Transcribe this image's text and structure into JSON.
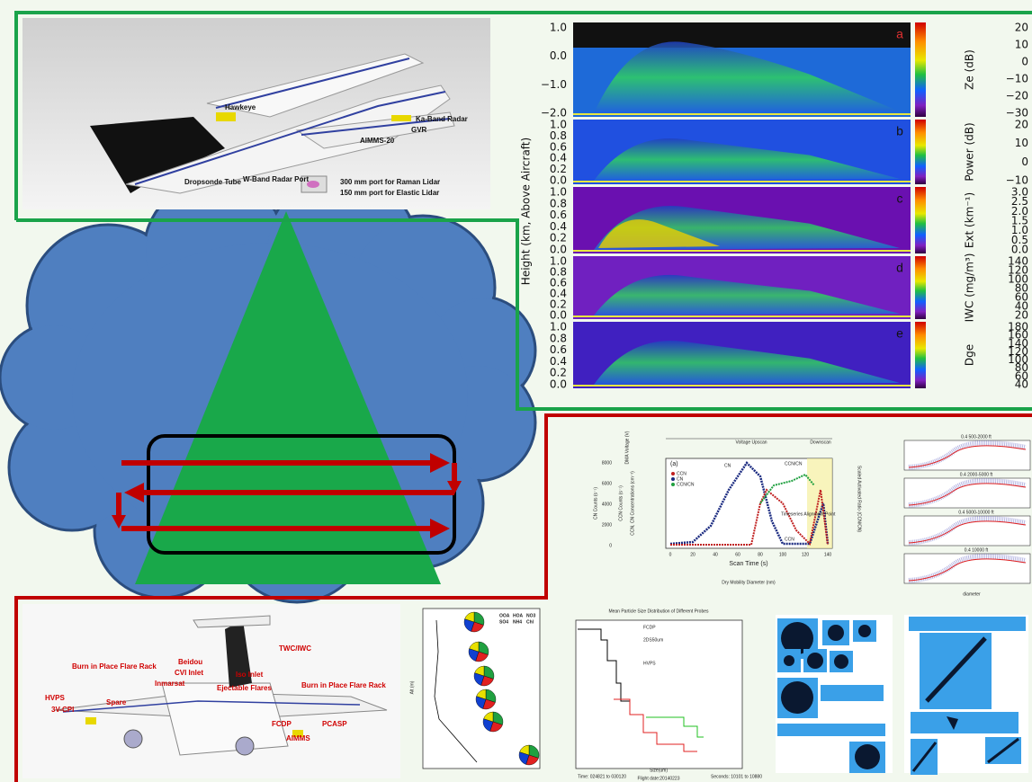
{
  "top_aircraft": {
    "labels": [
      "Hawkeye",
      "Ka-Band Radar",
      "AIMMS-20",
      "GVR",
      "Dropsonde Tube",
      "W-Band Radar Port",
      "300 mm port for Raman Lidar",
      "150 mm port for Elastic Lidar"
    ]
  },
  "radar": {
    "y_label": "Height (km, Above Aircraft)",
    "panels": [
      {
        "letter": "a",
        "yticks": [
          "1.0",
          "0.0",
          "−1.0",
          "−2.0"
        ],
        "cbar_label": "Ze (dB)",
        "cbar_ticks": [
          "20",
          "10",
          "0",
          "−10",
          "−20",
          "−30"
        ]
      },
      {
        "letter": "b",
        "yticks": [
          "1.0",
          "0.8",
          "0.6",
          "0.4",
          "0.2",
          "0.0"
        ],
        "cbar_label": "Power (dB)",
        "cbar_ticks": [
          "20",
          "10",
          "0",
          "−10"
        ]
      },
      {
        "letter": "c",
        "yticks": [
          "1.0",
          "0.8",
          "0.6",
          "0.4",
          "0.2",
          "0.0"
        ],
        "cbar_label": "Ext (km⁻¹)",
        "cbar_ticks": [
          "3.0",
          "2.5",
          "2.0",
          "1.5",
          "1.0",
          "0.5",
          "0.0"
        ]
      },
      {
        "letter": "d",
        "yticks": [
          "1.0",
          "0.8",
          "0.6",
          "0.4",
          "0.2",
          "0.0"
        ],
        "cbar_label": "IWC (mg/m³)",
        "cbar_ticks": [
          "140",
          "120",
          "100",
          "80",
          "60",
          "40",
          "20"
        ]
      },
      {
        "letter": "e",
        "yticks": [
          "1.0",
          "0.8",
          "0.6",
          "0.4",
          "0.2",
          "0.0"
        ],
        "cbar_label": "Dge",
        "cbar_ticks": [
          "180",
          "160",
          "140",
          "120",
          "100",
          "80",
          "60",
          "40"
        ]
      }
    ]
  },
  "ccn_chart": {
    "panel": "(a)",
    "upscan": "Voltage Upscan",
    "downscan": "Downscan",
    "legend": [
      "CCN",
      "CN",
      "CCN/CN"
    ],
    "x_label": "Scan Time (s)",
    "x2_label": "Dry Mobility Diameter (nm)",
    "xticks": [
      "0",
      "20",
      "40",
      "60",
      "80",
      "100",
      "120",
      "140"
    ],
    "y_labels": [
      "CN Counts (s⁻¹)",
      "CCN Counts (s⁻¹)",
      "CCN, CN Concentrations (cm⁻³)",
      "Scaled Activated Ratio (CCN/CN)",
      "DMA Voltage (V)"
    ],
    "yticks": [
      "8000",
      "6000",
      "4000",
      "2000",
      "0"
    ],
    "annotations": [
      "CN",
      "CCN",
      "CCN/CN",
      "Timeseries Alignment Point"
    ]
  },
  "mini_plots": {
    "titles": [
      "0.4 500-2000 ft",
      "0.4 2000-5000 ft",
      "0.4 5000-10000 ft",
      "0.4 10000 ft"
    ],
    "x_label": "diameter"
  },
  "bottom_aircraft": {
    "labels": [
      "TWC/IWC",
      "Beidou",
      "CVI Inlet",
      "Iso Inlet",
      "Inmarsat",
      "Ejectable Flares",
      "Burn in Place Flare Rack",
      "Burn in Place Flare Rack",
      "HVPS",
      "Spare",
      "3V-CPI",
      "FCDP",
      "PCASP",
      "AIMMS"
    ]
  },
  "pie_profile": {
    "legend": [
      "OOA",
      "HOA",
      "NO3",
      "SO4",
      "NH4",
      "Chl"
    ],
    "y_label": "Alt (m)"
  },
  "size_distribution": {
    "title": "Mean Particle Size Distribution of Different Probes",
    "probes": [
      "FCDP",
      "2DS50um",
      "HVPS"
    ],
    "x_label": "Size(um)",
    "footer": [
      "Time: 024821 to 030120",
      "Flight date:20140223",
      "Seconds: 10101 to 10880"
    ]
  }
}
